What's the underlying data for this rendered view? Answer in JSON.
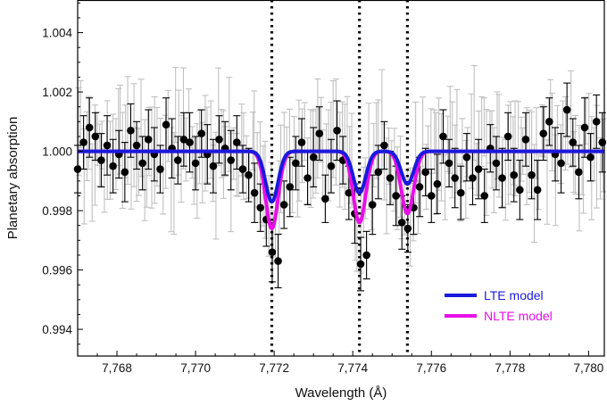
{
  "chart_data": {
    "type": "scatter",
    "xlabel": "Wavelength (Å)",
    "ylabel": "Planetary absorption",
    "xlim": [
      7767.0,
      7780.4
    ],
    "ylim": [
      0.9931,
      1.0051
    ],
    "xticks": [
      7768,
      7770,
      7772,
      7774,
      7776,
      7778,
      7780
    ],
    "xtick_labels": [
      "7,768",
      "7,770",
      "7,772",
      "7,774",
      "7,776",
      "7,778",
      "7,780"
    ],
    "yticks": [
      0.994,
      0.996,
      0.998,
      1.0,
      1.002,
      1.004
    ],
    "ytick_labels": [
      "0.994",
      "0.996",
      "0.998",
      "1.000",
      "1.002",
      "1.004"
    ],
    "grid": false,
    "legend_position": "bottom-right",
    "line_centers": [
      7771.94,
      7774.17,
      7775.39
    ],
    "colors": {
      "binned_points": "#000000",
      "raw_points": "#c0c0c0",
      "lte": "#1a1adc",
      "nlte": "#e80ee8",
      "vlines": "#000000"
    },
    "series": [
      {
        "name": "LTE model",
        "kind": "model",
        "continuum": 1.0,
        "lines": [
          {
            "center": 7771.94,
            "depth": 0.0017,
            "sigma": 0.16
          },
          {
            "center": 7774.17,
            "depth": 0.0014,
            "sigma": 0.16
          },
          {
            "center": 7775.39,
            "depth": 0.0011,
            "sigma": 0.16
          }
        ]
      },
      {
        "name": "NLTE model",
        "kind": "model",
        "continuum": 1.0,
        "lines": [
          {
            "center": 7771.94,
            "depth": 0.0026,
            "sigma": 0.16
          },
          {
            "center": 7774.17,
            "depth": 0.0024,
            "sigma": 0.16
          },
          {
            "center": 7775.39,
            "depth": 0.0021,
            "sigma": 0.16
          }
        ]
      },
      {
        "kind": "binned_points",
        "x": [
          7767.0,
          7767.15,
          7767.3,
          7767.45,
          7767.6,
          7767.75,
          7767.9,
          7768.05,
          7768.2,
          7768.35,
          7768.5,
          7768.65,
          7768.8,
          7768.95,
          7769.1,
          7769.25,
          7769.4,
          7769.55,
          7769.7,
          7769.85,
          7770.0,
          7770.15,
          7770.3,
          7770.45,
          7770.6,
          7770.75,
          7770.9,
          7771.05,
          7771.2,
          7771.35,
          7771.5,
          7771.65,
          7771.8,
          7771.95,
          7772.1,
          7772.25,
          7772.4,
          7772.55,
          7772.7,
          7772.85,
          7773.0,
          7773.15,
          7773.3,
          7773.45,
          7773.6,
          7773.75,
          7773.9,
          7774.05,
          7774.2,
          7774.35,
          7774.5,
          7774.65,
          7774.8,
          7774.95,
          7775.1,
          7775.25,
          7775.4,
          7775.55,
          7775.7,
          7775.85,
          7776.0,
          7776.15,
          7776.3,
          7776.45,
          7776.6,
          7776.75,
          7776.9,
          7777.05,
          7777.2,
          7777.35,
          7777.5,
          7777.65,
          7777.8,
          7777.95,
          7778.1,
          7778.25,
          7778.4,
          7778.55,
          7778.7,
          7778.85,
          7779.0,
          7779.15,
          7779.3,
          7779.45,
          7779.6,
          7779.75,
          7779.9,
          7780.05,
          7780.2,
          7780.35
        ],
        "y": [
          0.9994,
          1.0003,
          1.0008,
          1.0005,
          0.9997,
          1.0002,
          0.9995,
          0.9999,
          0.9993,
          1.0007,
          1.0002,
          0.9996,
          1.0004,
          0.9999,
          0.9994,
          1.0009,
          1.0001,
          0.9997,
          1.0004,
          1.0003,
          0.9996,
          1.0006,
          0.9999,
          0.9995,
          1.0004,
          1.0001,
          0.9997,
          1.0003,
          0.9994,
          0.9992,
          0.9986,
          0.9981,
          0.9977,
          0.9966,
          0.9963,
          0.9982,
          0.9988,
          0.9996,
          1.0003,
          0.9991,
          0.9998,
          1.0006,
          0.9984,
          0.9995,
          1.0007,
          0.9997,
          0.9986,
          0.9979,
          0.9962,
          0.9965,
          0.9982,
          0.9993,
          1.0002,
          0.9991,
          0.9985,
          0.9976,
          0.9974,
          0.9981,
          0.9988,
          0.9993,
          0.9985,
          0.9989,
          1.0005,
          0.9996,
          0.9991,
          0.9986,
          0.9998,
          0.9991,
          0.9994,
          0.9985,
          1.0001,
          0.9996,
          0.9991,
          1.0005,
          0.9992,
          0.9987,
          1.0004,
          0.9992,
          0.9987,
          1.0006,
          1.001,
          0.9999,
          0.9996,
          1.0014,
          1.0003,
          0.9993,
          1.0008,
          0.9998,
          1.001,
          1.0003
        ],
        "yerr": [
          0.0008,
          0.0009,
          0.001,
          0.0008,
          0.0009,
          0.001,
          0.0009,
          0.0008,
          0.001,
          0.0009,
          0.0008,
          0.0009,
          0.001,
          0.0009,
          0.0008,
          0.0009,
          0.001,
          0.0008,
          0.0009,
          0.001,
          0.0009,
          0.0008,
          0.001,
          0.0009,
          0.0008,
          0.0009,
          0.001,
          0.0009,
          0.0008,
          0.0009,
          0.001,
          0.0008,
          0.0009,
          0.001,
          0.0009,
          0.0008,
          0.001,
          0.0009,
          0.0008,
          0.0009,
          0.001,
          0.0009,
          0.0008,
          0.0009,
          0.001,
          0.0008,
          0.0009,
          0.001,
          0.0009,
          0.0008,
          0.001,
          0.0009,
          0.0008,
          0.0009,
          0.001,
          0.0009,
          0.0008,
          0.0009,
          0.001,
          0.0008,
          0.0009,
          0.001,
          0.0009,
          0.0008,
          0.001,
          0.0009,
          0.0008,
          0.0009,
          0.001,
          0.0009,
          0.0008,
          0.0009,
          0.001,
          0.0008,
          0.0009,
          0.001,
          0.0009,
          0.0008,
          0.001,
          0.0009,
          0.0008,
          0.0009,
          0.001,
          0.0009,
          0.0008,
          0.0009,
          0.001,
          0.0008,
          0.0009,
          0.001
        ]
      },
      {
        "kind": "raw_points",
        "x_range": [
          7767.0,
          7780.4
        ],
        "count": 200,
        "y_mean": 1.0,
        "y_scatter": 0.0012,
        "yerr_typical": 0.0013
      }
    ]
  }
}
